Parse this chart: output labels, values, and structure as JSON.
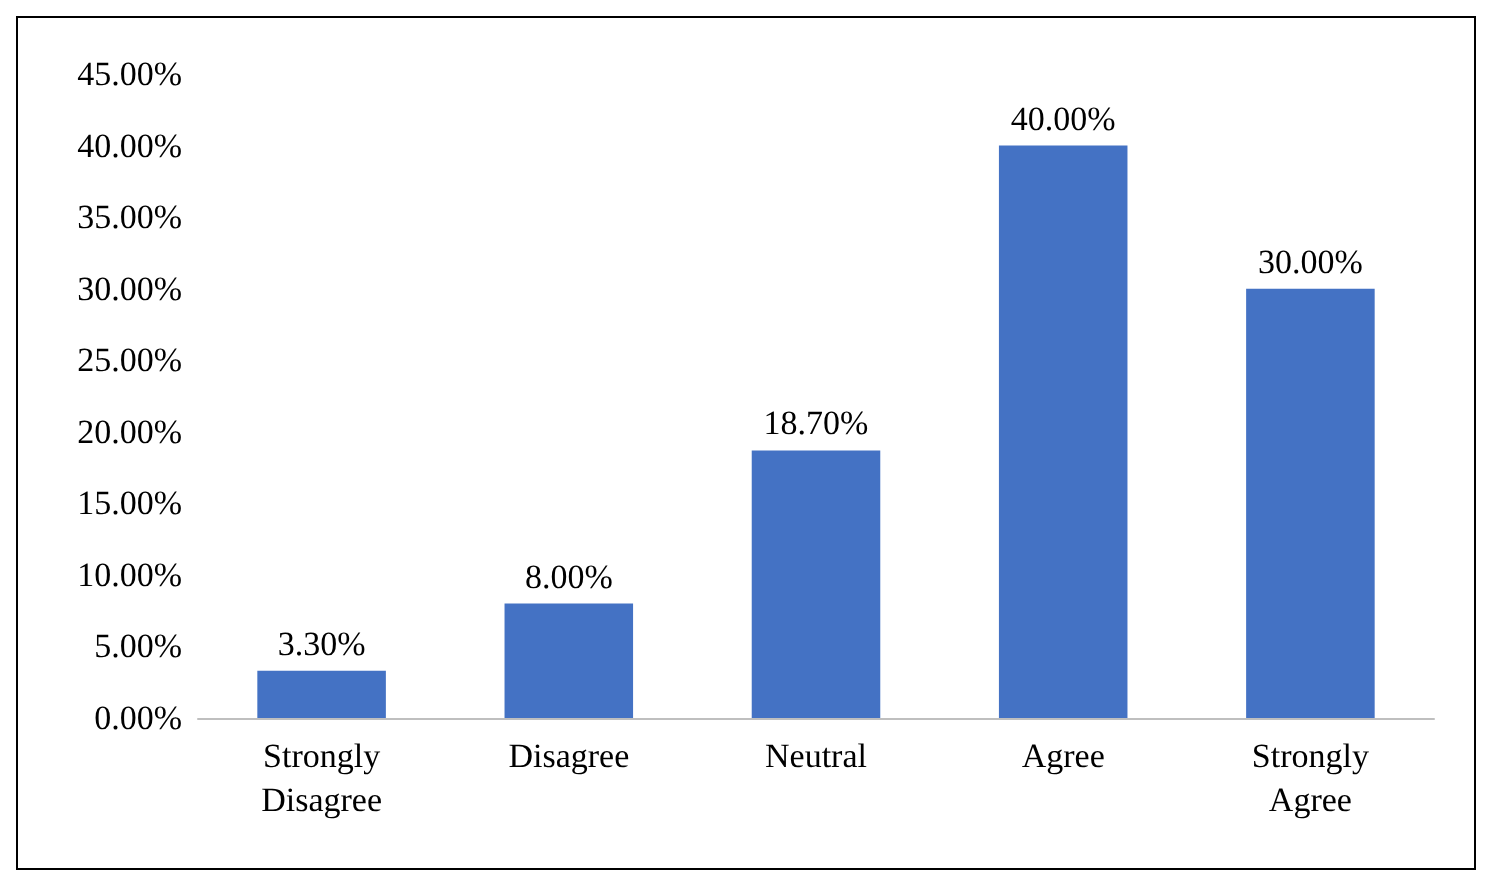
{
  "chart_data": {
    "type": "bar",
    "categories": [
      "Strongly\nDisagree",
      "Disagree",
      "Neutral",
      "Agree",
      "Strongly\nAgree"
    ],
    "values": [
      3.3,
      8.0,
      18.7,
      40.0,
      30.0
    ],
    "value_labels": [
      "3.30%",
      "8.00%",
      "18.70%",
      "40.00%",
      "30.00%"
    ],
    "color": "#4472c4",
    "ylim": [
      0,
      45
    ],
    "yticks": [
      {
        "value": 0,
        "label": "0.00%"
      },
      {
        "value": 5,
        "label": "5.00%"
      },
      {
        "value": 10,
        "label": "10.00%"
      },
      {
        "value": 15,
        "label": "15.00%"
      },
      {
        "value": 20,
        "label": "20.00%"
      },
      {
        "value": 25,
        "label": "25.00%"
      },
      {
        "value": 30,
        "label": "30.00%"
      },
      {
        "value": 35,
        "label": "35.00%"
      },
      {
        "value": 40,
        "label": "40.00%"
      },
      {
        "value": 45,
        "label": "45.00%"
      }
    ],
    "grid": false
  }
}
